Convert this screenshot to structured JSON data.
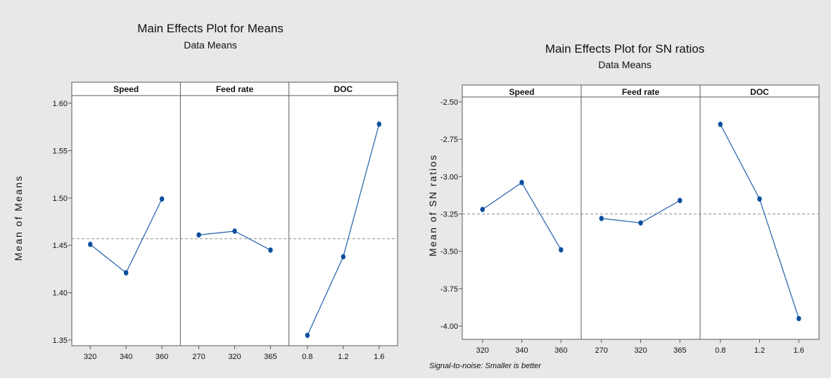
{
  "chart_data": [
    {
      "type": "line",
      "title": "Main Effects Plot for Means",
      "subtitle": "Data Means",
      "ylabel": "Mean of Means",
      "ylim": [
        1.35,
        1.6
      ],
      "yticks": [
        "1.35",
        "1.40",
        "1.45",
        "1.50",
        "1.55",
        "1.60"
      ],
      "yticks_values": [
        1.35,
        1.4,
        1.45,
        1.5,
        1.55,
        1.6
      ],
      "reference_line": 1.457,
      "grid": false,
      "footnote": "",
      "facets": [
        {
          "name": "Speed",
          "x": [
            "320",
            "340",
            "360"
          ],
          "values": [
            1.451,
            1.421,
            1.499
          ]
        },
        {
          "name": "Feed rate",
          "x": [
            "270",
            "320",
            "365"
          ],
          "values": [
            1.461,
            1.465,
            1.445
          ]
        },
        {
          "name": "DOC",
          "x": [
            "0.8",
            "1.2",
            "1.6"
          ],
          "values": [
            1.355,
            1.438,
            1.578
          ]
        }
      ]
    },
    {
      "type": "line",
      "title": "Main Effects Plot for SN ratios",
      "subtitle": "Data Means",
      "ylabel": "Mean of SN ratios",
      "ylim": [
        -4.05,
        -2.45
      ],
      "yticks": [
        "-2.50",
        "-2.75",
        "-3.00",
        "-3.25",
        "-3.50",
        "-3.75",
        "-4.00"
      ],
      "yticks_values": [
        -2.5,
        -2.75,
        -3.0,
        -3.25,
        -3.5,
        -3.75,
        -4.0
      ],
      "reference_line": -3.25,
      "grid": false,
      "footnote": "Signal-to-noise: Smaller is better",
      "facets": [
        {
          "name": "Speed",
          "x": [
            "320",
            "340",
            "360"
          ],
          "values": [
            -3.22,
            -3.04,
            -3.49
          ]
        },
        {
          "name": "Feed rate",
          "x": [
            "270",
            "320",
            "365"
          ],
          "values": [
            -3.28,
            -3.31,
            -3.16
          ]
        },
        {
          "name": "DOC",
          "x": [
            "0.8",
            "1.2",
            "1.6"
          ],
          "values": [
            -2.65,
            -3.15,
            -3.95
          ]
        }
      ]
    }
  ],
  "colors": {
    "panel_background": "#e8e8e8",
    "plot_background": "#ffffff",
    "series_line": "#1f5faa",
    "marker": "#0a4f9e",
    "reference_line": "#909090",
    "border": "#5a5a5a"
  }
}
